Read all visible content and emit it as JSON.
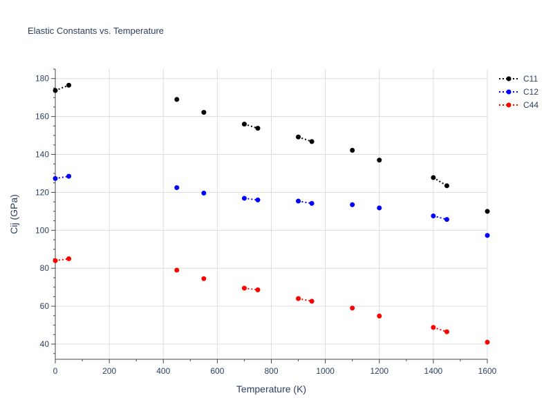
{
  "chart_data": {
    "type": "line",
    "title": "Elastic Constants vs. Temperature",
    "xlabel": "Temperature (K)",
    "ylabel": "Cij (GPa)",
    "xlim": [
      0,
      1600
    ],
    "ylim": [
      32,
      185
    ],
    "xticks": [
      0,
      200,
      400,
      600,
      800,
      1000,
      1200,
      1400,
      1600
    ],
    "yticks": [
      40,
      60,
      80,
      100,
      120,
      140,
      160,
      180
    ],
    "grid": true,
    "legend_position": "top-right",
    "line_style": "dotted",
    "series": [
      {
        "name": "C11",
        "color": "#000000",
        "points": [
          [
            0,
            173.7
          ],
          [
            50,
            176.5
          ],
          [
            450,
            169.0
          ],
          [
            550,
            162.2
          ],
          [
            700,
            156.0
          ],
          [
            750,
            153.8
          ],
          [
            900,
            149.2
          ],
          [
            950,
            146.8
          ],
          [
            1100,
            142.2
          ],
          [
            1200,
            137.0
          ],
          [
            1400,
            127.8
          ],
          [
            1450,
            123.5
          ],
          [
            1600,
            110.0
          ]
        ]
      },
      {
        "name": "C12",
        "color": "#0000ff",
        "points": [
          [
            0,
            127.3
          ],
          [
            50,
            128.5
          ],
          [
            450,
            122.5
          ],
          [
            550,
            119.6
          ],
          [
            700,
            116.9
          ],
          [
            750,
            116.0
          ],
          [
            900,
            115.4
          ],
          [
            950,
            114.2
          ],
          [
            1100,
            113.5
          ],
          [
            1200,
            111.8
          ],
          [
            1400,
            107.6
          ],
          [
            1450,
            105.7
          ],
          [
            1600,
            97.3
          ]
        ]
      },
      {
        "name": "C44",
        "color": "#ff0000",
        "points": [
          [
            0,
            84.0
          ],
          [
            50,
            85.0
          ],
          [
            450,
            79.0
          ],
          [
            550,
            74.5
          ],
          [
            700,
            69.5
          ],
          [
            750,
            68.6
          ],
          [
            900,
            64.0
          ],
          [
            950,
            62.6
          ],
          [
            1100,
            59.0
          ],
          [
            1200,
            54.8
          ],
          [
            1400,
            48.8
          ],
          [
            1450,
            46.5
          ],
          [
            1600,
            41.0
          ]
        ]
      }
    ]
  }
}
